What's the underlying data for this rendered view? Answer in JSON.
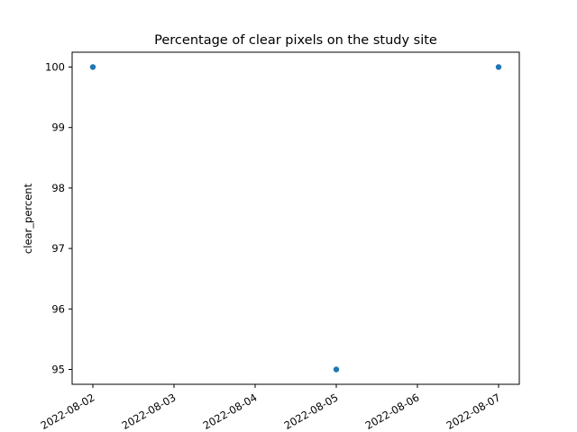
{
  "chart_data": {
    "type": "scatter",
    "title": "Percentage of clear pixels on the study site",
    "xlabel": "",
    "ylabel": "clear_percent",
    "x": [
      "2022-08-02",
      "2022-08-05",
      "2022-08-07"
    ],
    "y": [
      100,
      95,
      100
    ],
    "xlim": [
      "2022-08-02",
      "2022-08-07"
    ],
    "ylim": [
      95,
      100
    ],
    "x_ticks": [
      "2022-08-02",
      "2022-08-03",
      "2022-08-04",
      "2022-08-05",
      "2022-08-06",
      "2022-08-07"
    ],
    "y_ticks": [
      95,
      96,
      97,
      98,
      99,
      100
    ],
    "grid": false,
    "marker_color": "#1f77b4"
  }
}
